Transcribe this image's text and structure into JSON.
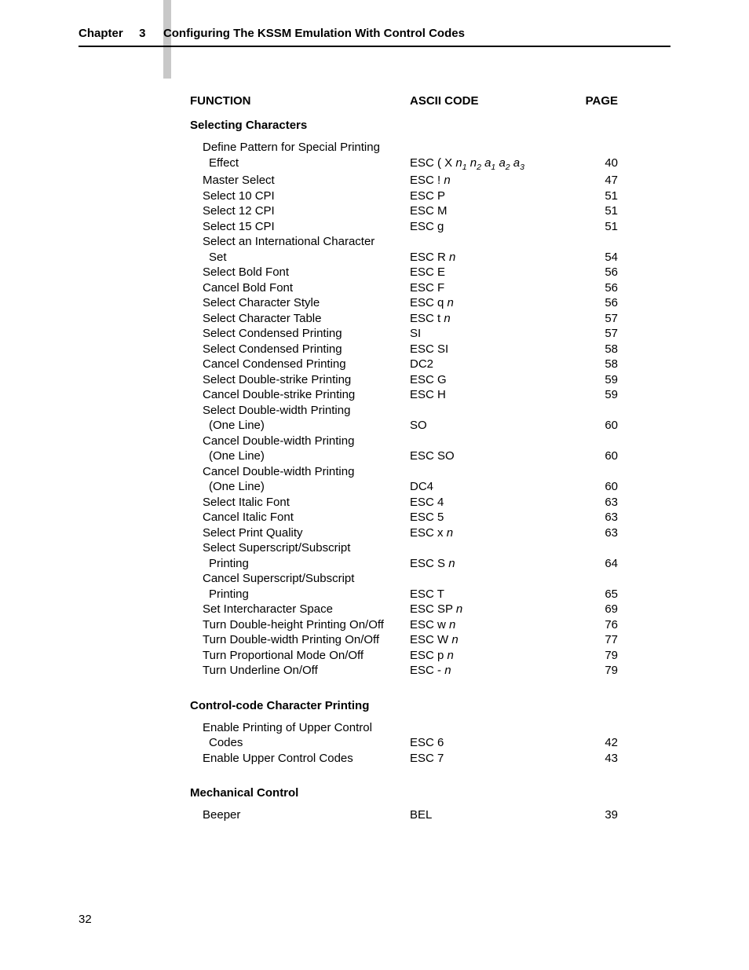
{
  "header": {
    "chapter_label": "Chapter",
    "chapter_num": "3",
    "title": "Configuring The KSSM Emulation With Control Codes"
  },
  "columns": {
    "function": "FUNCTION",
    "code": "ASCII CODE",
    "page": "PAGE"
  },
  "sections": [
    {
      "title": "Selecting Characters",
      "rows": [
        {
          "f1": "Define Pattern for Special Printing",
          "f2": "Effect",
          "code_pre": "ESC ( X ",
          "code_sub": "n1 n2 a1 a2 a3",
          "page": "40"
        },
        {
          "f1": "Master Select",
          "code_pre": "ESC ! ",
          "code_it": "n",
          "page": "47"
        },
        {
          "f1": "Select 10 CPI",
          "code_pre": "ESC P",
          "page": "51"
        },
        {
          "f1": "Select 12 CPI",
          "code_pre": "ESC M",
          "page": "51"
        },
        {
          "f1": "Select 15 CPI",
          "code_pre": "ESC g",
          "page": "51"
        },
        {
          "f1": "Select an International Character",
          "f2": "Set",
          "code_pre": "ESC R ",
          "code_it": "n",
          "page": "54"
        },
        {
          "f1": "Select Bold Font",
          "code_pre": "ESC E",
          "page": "56"
        },
        {
          "f1": "Cancel Bold Font",
          "code_pre": "ESC F",
          "page": "56"
        },
        {
          "f1": "Select Character Style",
          "code_pre": "ESC q ",
          "code_it": "n",
          "page": "56"
        },
        {
          "f1": "Select Character Table",
          "code_pre": "ESC t ",
          "code_it": "n",
          "page": "57"
        },
        {
          "f1": "Select Condensed Printing",
          "code_pre": "SI",
          "page": "57"
        },
        {
          "f1": "Select Condensed Printing",
          "code_pre": "ESC SI",
          "page": "58"
        },
        {
          "f1": "Cancel Condensed Printing",
          "code_pre": "DC2",
          "page": "58"
        },
        {
          "f1": "Select Double-strike Printing",
          "code_pre": "ESC G",
          "page": "59"
        },
        {
          "f1": "Cancel Double-strike Printing",
          "code_pre": "ESC H",
          "page": "59"
        },
        {
          "f1": "Select Double-width Printing",
          "f2": "(One Line)",
          "code_pre": "SO",
          "page": "60"
        },
        {
          "f1": "Cancel Double-width Printing",
          "f2": "(One Line)",
          "code_pre": "ESC SO",
          "page": "60"
        },
        {
          "f1": "Cancel Double-width Printing",
          "f2": "(One Line)",
          "code_pre": "DC4",
          "page": "60"
        },
        {
          "f1": "Select Italic Font",
          "code_pre": "ESC 4",
          "page": "63"
        },
        {
          "f1": "Cancel Italic Font",
          "code_pre": "ESC 5",
          "page": "63"
        },
        {
          "f1": "Select Print Quality",
          "code_pre": "ESC x ",
          "code_it": "n",
          "page": "63"
        },
        {
          "f1": "Select Superscript/Subscript",
          "f2": "Printing",
          "code_pre": "ESC S ",
          "code_it": "n",
          "page": "64"
        },
        {
          "f1": "Cancel Superscript/Subscript",
          "f2": "Printing",
          "code_pre": "ESC T",
          "page": "65"
        },
        {
          "f1": "Set Intercharacter Space",
          "code_pre": "ESC SP ",
          "code_it": "n",
          "page": "69"
        },
        {
          "f1": "Turn Double-height Printing On/Off",
          "code_pre": "ESC w ",
          "code_it": "n",
          "page": "76"
        },
        {
          "f1": "Turn Double-width Printing On/Off",
          "code_pre": "ESC W ",
          "code_it": "n",
          "page": "77"
        },
        {
          "f1": "Turn Proportional Mode On/Off",
          "code_pre": "ESC p ",
          "code_it": "n",
          "page": "79"
        },
        {
          "f1": "Turn Underline On/Off",
          "code_pre": "ESC - ",
          "code_it": "n",
          "page": "79"
        }
      ]
    },
    {
      "title": "Control-code Character Printing",
      "rows": [
        {
          "f1": "Enable Printing of Upper Control",
          "f2": "Codes",
          "code_pre": "ESC 6",
          "page": "42"
        },
        {
          "f1": "Enable Upper Control Codes",
          "code_pre": "ESC 7",
          "page": "43"
        }
      ]
    },
    {
      "title": "Mechanical Control",
      "rows": [
        {
          "f1": "Beeper",
          "code_pre": "BEL",
          "page": "39"
        }
      ]
    }
  ],
  "page_number": "32"
}
